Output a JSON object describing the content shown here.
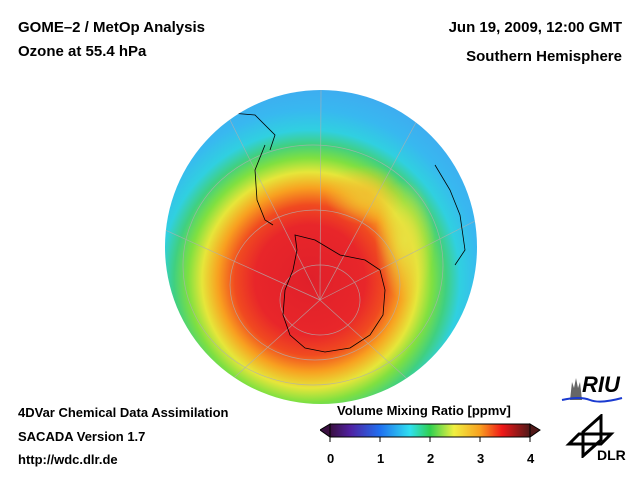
{
  "header": {
    "title_line1": "GOME–2 / MetOp Analysis",
    "title_line2": "Ozone at 55.4 hPa",
    "date": "Jun 19, 2009, 12:00 GMT",
    "region": "Southern Hemisphere"
  },
  "footer": {
    "line1": "4DVar Chemical Data Assimilation",
    "line2": "SACADA Version 1.7",
    "line3": "http://wdc.dlr.de"
  },
  "colorbar": {
    "title": "Volume Mixing Ratio [ppmv]",
    "ticks": [
      "0",
      "1",
      "2",
      "3",
      "4"
    ],
    "range": [
      0,
      4
    ],
    "colors": [
      "#3a1040",
      "#5020a0",
      "#2060f0",
      "#30d0f0",
      "#30d060",
      "#e8f040",
      "#f8a020",
      "#f02020",
      "#5a2020"
    ]
  },
  "logos": {
    "riu": "RIU",
    "dlr": "DLR"
  }
}
